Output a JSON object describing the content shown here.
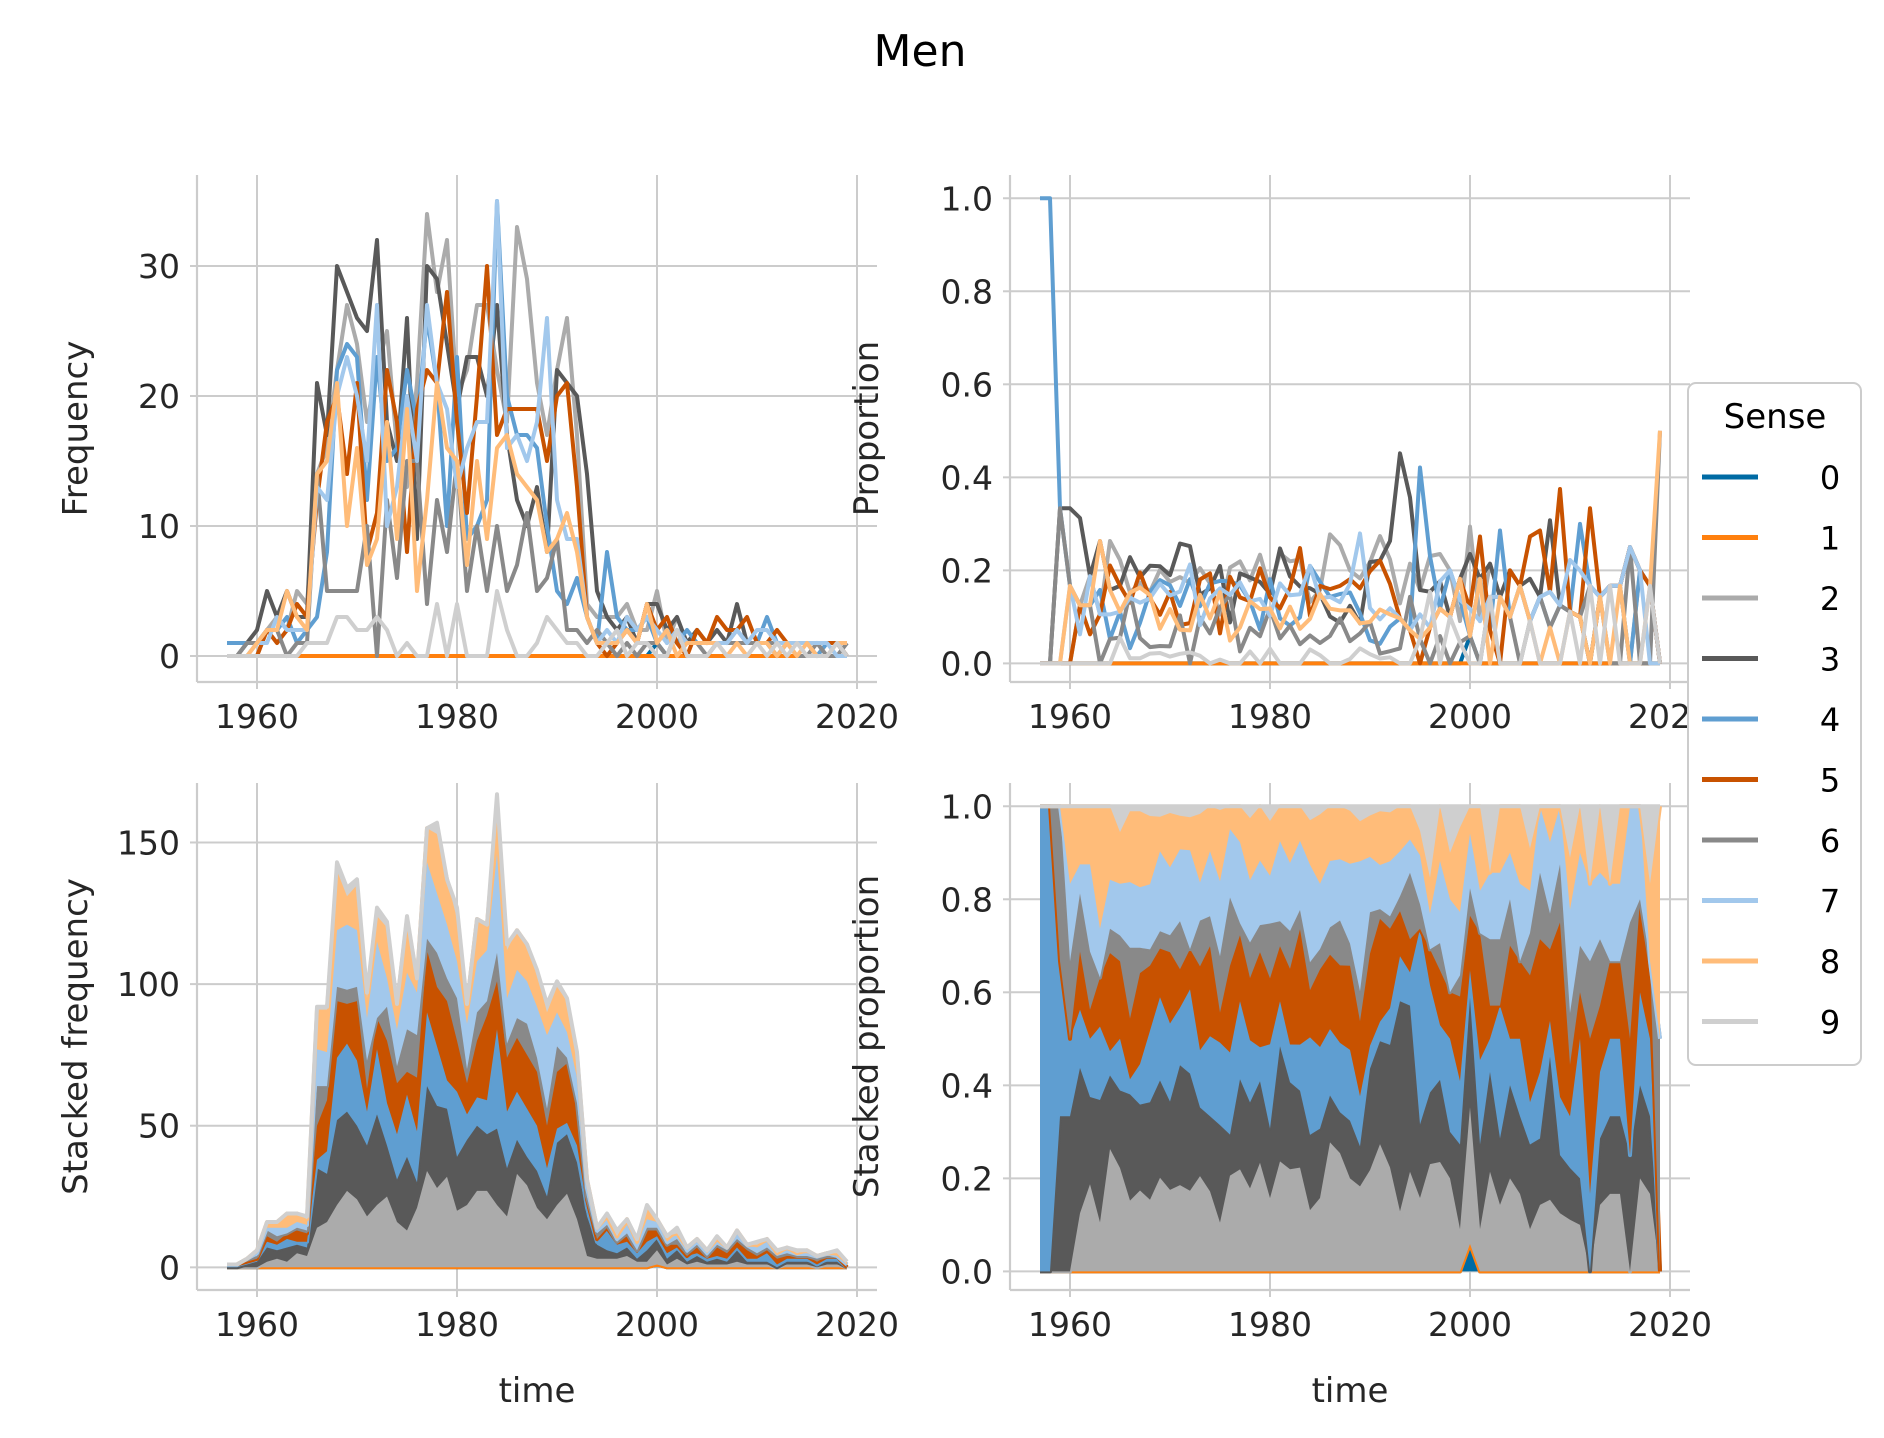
{
  "figure": {
    "title": "Men",
    "legend": {
      "title": "Sense",
      "placement": "right"
    }
  },
  "palette": [
    "#006ba4",
    "#ff800e",
    "#ababab",
    "#595959",
    "#5f9ed1",
    "#c85200",
    "#898989",
    "#a2c8ec",
    "#ffbc79",
    "#cfcfcf"
  ],
  "chart_data": [
    {
      "type": "line",
      "panel": "top-left",
      "title": "",
      "xlabel": "",
      "ylabel": "Frequency",
      "xlim": [
        1954,
        2022
      ],
      "ylim": [
        -2,
        37
      ],
      "xticks": [
        1960,
        1980,
        2000,
        2020
      ],
      "yticks": [
        0,
        10,
        20,
        30
      ],
      "grid": true,
      "x": [
        1957,
        1958,
        1959,
        1960,
        1961,
        1962,
        1963,
        1964,
        1965,
        1966,
        1967,
        1968,
        1969,
        1970,
        1971,
        1972,
        1973,
        1974,
        1975,
        1976,
        1977,
        1978,
        1979,
        1980,
        1981,
        1982,
        1983,
        1984,
        1985,
        1986,
        1987,
        1988,
        1989,
        1990,
        1991,
        1992,
        1993,
        1994,
        1995,
        1996,
        1997,
        1998,
        1999,
        2000,
        2001,
        2002,
        2003,
        2004,
        2005,
        2006,
        2007,
        2008,
        2009,
        2010,
        2011,
        2012,
        2013,
        2014,
        2015,
        2016,
        2017,
        2018,
        2019
      ],
      "series": [
        {
          "name": "0",
          "values": [
            0,
            0,
            0,
            0,
            0,
            0,
            0,
            0,
            0,
            0,
            0,
            0,
            0,
            0,
            0,
            0,
            0,
            0,
            0,
            0,
            0,
            0,
            0,
            0,
            0,
            0,
            0,
            0,
            0,
            0,
            0,
            0,
            0,
            0,
            0,
            0,
            0,
            0,
            0,
            0,
            0,
            0,
            0,
            1,
            0,
            0,
            0,
            0,
            0,
            0,
            0,
            0,
            0,
            0,
            0,
            0,
            0,
            0,
            0,
            0,
            0,
            0,
            0
          ]
        },
        {
          "name": "1",
          "values": [
            0,
            0,
            0,
            0,
            0,
            0,
            0,
            0,
            0,
            0,
            0,
            0,
            0,
            0,
            0,
            0,
            0,
            0,
            0,
            0,
            0,
            0,
            0,
            0,
            0,
            0,
            0,
            0,
            0,
            0,
            0,
            0,
            0,
            0,
            0,
            0,
            0,
            0,
            0,
            0,
            0,
            0,
            0,
            0,
            0,
            0,
            0,
            0,
            0,
            0,
            0,
            0,
            0,
            0,
            0,
            0,
            0,
            0,
            0,
            0,
            0,
            0,
            0
          ]
        },
        {
          "name": "2",
          "values": [
            0,
            0,
            0,
            0,
            2,
            3,
            2,
            5,
            4,
            14,
            16,
            22,
            27,
            24,
            18,
            22,
            25,
            16,
            13,
            21,
            34,
            28,
            32,
            20,
            22,
            27,
            27,
            22,
            18,
            33,
            29,
            21,
            17,
            22,
            26,
            17,
            4,
            3,
            3,
            3,
            4,
            2,
            2,
            5,
            1,
            3,
            1,
            2,
            1,
            1,
            1,
            2,
            1,
            1,
            1,
            0,
            1,
            1,
            1,
            0,
            1,
            1,
            0
          ]
        },
        {
          "name": "3",
          "values": [
            0,
            0,
            1,
            2,
            5,
            3,
            5,
            3,
            3,
            21,
            17,
            30,
            28,
            26,
            25,
            32,
            18,
            15,
            26,
            9,
            30,
            29,
            24,
            19,
            23,
            23,
            20,
            27,
            17,
            12,
            10,
            13,
            8,
            22,
            21,
            20,
            14,
            5,
            3,
            2,
            3,
            1,
            4,
            4,
            2,
            3,
            1,
            2,
            1,
            2,
            1,
            4,
            1,
            1,
            1,
            0,
            1,
            1,
            1,
            1,
            1,
            1,
            0
          ]
        },
        {
          "name": "4",
          "values": [
            1,
            1,
            1,
            1,
            2,
            2,
            3,
            1,
            2,
            3,
            8,
            22,
            24,
            23,
            12,
            23,
            15,
            16,
            22,
            18,
            26,
            21,
            10,
            23,
            9,
            10,
            12,
            35,
            20,
            17,
            17,
            16,
            10,
            5,
            4,
            6,
            3,
            1,
            8,
            3,
            2,
            2,
            3,
            1,
            2,
            1,
            2,
            1,
            1,
            1,
            1,
            1,
            1,
            1,
            3,
            1,
            1,
            1,
            1,
            0,
            1,
            1,
            0
          ]
        },
        {
          "name": "5",
          "values": [
            0,
            0,
            0,
            0,
            2,
            1,
            2,
            4,
            3,
            12,
            18,
            20,
            14,
            21,
            8,
            11,
            22,
            18,
            8,
            19,
            22,
            21,
            28,
            18,
            11,
            20,
            30,
            17,
            19,
            19,
            19,
            19,
            15,
            20,
            21,
            13,
            3,
            1,
            0,
            1,
            2,
            1,
            4,
            2,
            3,
            1,
            0,
            2,
            1,
            3,
            2,
            2,
            3,
            1,
            1,
            2,
            1,
            1,
            1,
            1,
            1,
            1,
            0
          ]
        },
        {
          "name": "6",
          "values": [
            0,
            0,
            1,
            1,
            2,
            2,
            0,
            1,
            1,
            14,
            5,
            5,
            5,
            5,
            10,
            0,
            12,
            6,
            15,
            15,
            4,
            12,
            8,
            15,
            5,
            10,
            5,
            10,
            5,
            7,
            11,
            5,
            6,
            9,
            2,
            2,
            1,
            2,
            1,
            0,
            1,
            0,
            1,
            1,
            0,
            2,
            1,
            1,
            0,
            1,
            1,
            1,
            1,
            1,
            1,
            1,
            1,
            0,
            0,
            1,
            0,
            0,
            1
          ]
        },
        {
          "name": "7",
          "values": [
            0,
            0,
            0,
            1,
            1,
            3,
            2,
            2,
            2,
            13,
            12,
            20,
            23,
            20,
            15,
            27,
            10,
            13,
            20,
            15,
            27,
            21,
            19,
            13,
            16,
            18,
            18,
            35,
            16,
            17,
            15,
            18,
            26,
            12,
            9,
            9,
            3,
            1,
            2,
            1,
            3,
            2,
            3,
            2,
            1,
            2,
            1,
            1,
            1,
            1,
            1,
            2,
            1,
            2,
            2,
            1,
            1,
            1,
            1,
            1,
            1,
            0,
            0
          ]
        },
        {
          "name": "8",
          "values": [
            0,
            0,
            0,
            1,
            2,
            2,
            5,
            3,
            2,
            14,
            15,
            21,
            10,
            16,
            7,
            9,
            18,
            9,
            19,
            5,
            12,
            21,
            16,
            15,
            7,
            15,
            9,
            16,
            17,
            14,
            13,
            12,
            8,
            9,
            11,
            8,
            3,
            1,
            1,
            1,
            2,
            1,
            4,
            1,
            2,
            0,
            1,
            1,
            1,
            1,
            0,
            1,
            0,
            1,
            1,
            0,
            1,
            0,
            1,
            0,
            0,
            1,
            1
          ]
        },
        {
          "name": "9",
          "values": [
            0,
            0,
            0,
            0,
            0,
            0,
            0,
            0,
            1,
            1,
            1,
            3,
            3,
            2,
            2,
            3,
            2,
            0,
            1,
            0,
            0,
            4,
            0,
            4,
            0,
            0,
            0,
            5,
            2,
            0,
            0,
            1,
            3,
            2,
            1,
            1,
            0,
            0,
            1,
            2,
            0,
            1,
            1,
            0,
            0,
            2,
            0,
            0,
            0,
            1,
            0,
            0,
            0,
            1,
            0,
            1,
            0,
            1,
            0,
            0,
            0,
            1,
            0
          ]
        }
      ]
    },
    {
      "type": "line",
      "panel": "top-right",
      "title": "",
      "xlabel": "",
      "ylabel": "Proportion",
      "xlim": [
        1954,
        2022
      ],
      "ylim": [
        -0.04,
        1.05
      ],
      "xticks": [
        1960,
        1980,
        2000,
        2020
      ],
      "yticks": [
        0.0,
        0.2,
        0.4,
        0.6,
        0.8,
        1.0
      ],
      "grid": true,
      "derived_from": "top-left (frequency divided by yearly total)"
    },
    {
      "type": "area",
      "panel": "bottom-left",
      "title": "",
      "xlabel": "time",
      "ylabel": "Stacked frequency",
      "xlim": [
        1954,
        2022
      ],
      "ylim": [
        -8,
        171
      ],
      "xticks": [
        1960,
        1980,
        2000,
        2020
      ],
      "yticks": [
        0,
        50,
        100,
        150
      ],
      "grid": true,
      "derived_from": "top-left (stacked)"
    },
    {
      "type": "area",
      "panel": "bottom-right",
      "title": "",
      "xlabel": "time",
      "ylabel": "Stacked proportion",
      "xlim": [
        1954,
        2022
      ],
      "ylim": [
        -0.04,
        1.05
      ],
      "xticks": [
        1960,
        1980,
        2000,
        2020
      ],
      "yticks": [
        0.0,
        0.2,
        0.4,
        0.6,
        0.8,
        1.0
      ],
      "grid": true,
      "derived_from": "top-right (stacked)"
    }
  ]
}
